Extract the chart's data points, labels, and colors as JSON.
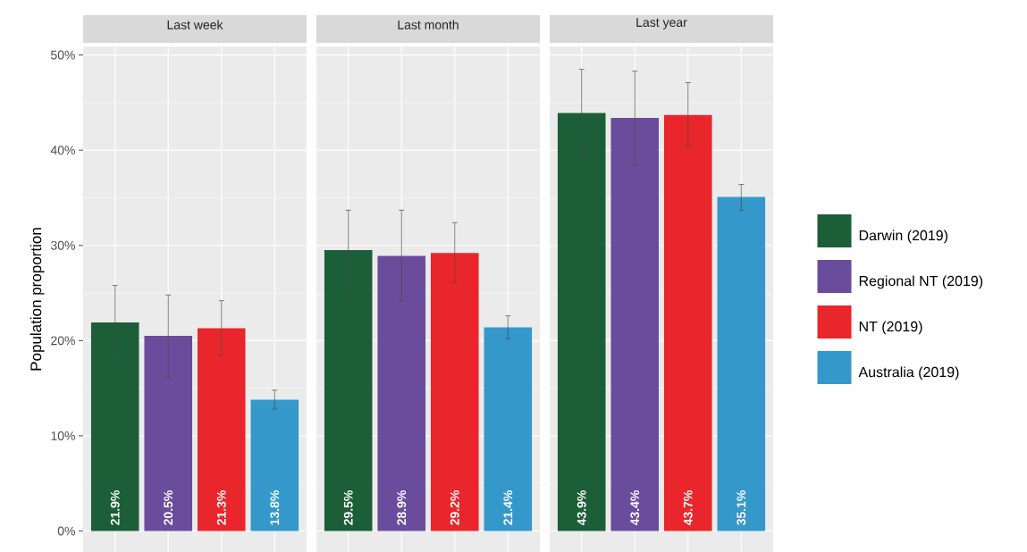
{
  "chart_data": {
    "type": "bar",
    "ylabel": "Population proportion",
    "categories": [
      "Last week",
      "Last month",
      "Last year"
    ],
    "series": [
      {
        "name": "Darwin (2019)",
        "color": "#1b5e37",
        "values": [
          21.9,
          29.5,
          43.9
        ],
        "errors": [
          [
            18.0,
            25.8
          ],
          [
            25.3,
            33.7
          ],
          [
            39.3,
            48.5
          ]
        ],
        "value_labels": [
          "21.9%",
          "29.5%",
          "43.9%"
        ]
      },
      {
        "name": "Regional NT (2019)",
        "color": "#6a4c9c",
        "values": [
          20.5,
          28.9,
          43.4
        ],
        "errors": [
          [
            16.2,
            24.8
          ],
          [
            24.2,
            33.7
          ],
          [
            38.4,
            48.3
          ]
        ],
        "value_labels": [
          "20.5%",
          "28.9%",
          "43.4%"
        ]
      },
      {
        "name": "NT (2019)",
        "color": "#e8262b",
        "values": [
          21.3,
          29.2,
          43.7
        ],
        "errors": [
          [
            18.4,
            24.2
          ],
          [
            26.1,
            32.4
          ],
          [
            40.3,
            47.1
          ]
        ],
        "value_labels": [
          "21.3%",
          "29.2%",
          "43.7%"
        ]
      },
      {
        "name": "Australia (2019)",
        "color": "#3498cb",
        "values": [
          13.8,
          21.4,
          35.1
        ],
        "errors": [
          [
            12.8,
            14.8
          ],
          [
            20.2,
            22.6
          ],
          [
            33.7,
            36.4
          ]
        ],
        "value_labels": [
          "13.8%",
          "21.4%",
          "35.1%"
        ]
      }
    ],
    "ylim": [
      -2.2,
      50.9
    ],
    "yticks": [
      {
        "value": 0,
        "label": "0%"
      },
      {
        "value": 10,
        "label": "10%"
      },
      {
        "value": 20,
        "label": "20%"
      },
      {
        "value": 30,
        "label": "30%"
      },
      {
        "value": 40,
        "label": "40%"
      },
      {
        "value": 50,
        "label": "50%"
      }
    ],
    "grid": true,
    "legend": "right"
  }
}
